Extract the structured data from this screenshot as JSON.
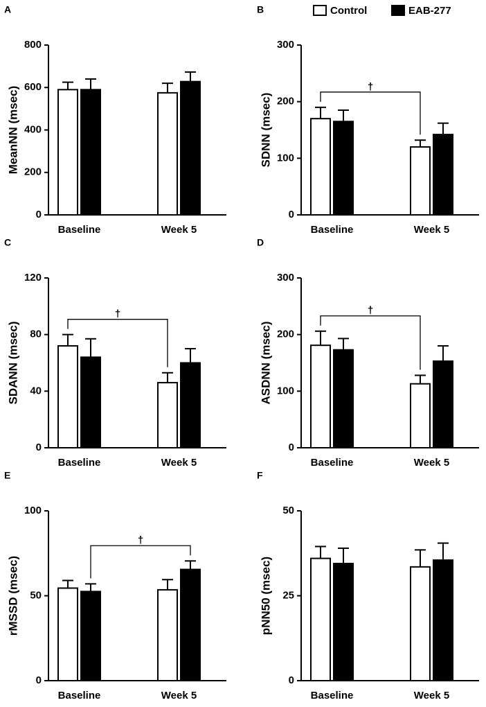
{
  "chart_data": [
    {
      "type": "bar",
      "panel": "A",
      "ylabel": "MeanNN (msec)",
      "categories": [
        "Baseline",
        "Week 5"
      ],
      "ylim": [
        0,
        800
      ],
      "yticks": [
        0,
        200,
        400,
        600,
        800
      ],
      "series": [
        {
          "color": "#ffffff",
          "values": [
            590,
            575
          ],
          "errors": [
            35,
            45
          ]
        },
        {
          "color": "#000000",
          "values": [
            590,
            628
          ],
          "errors": [
            50,
            45
          ]
        }
      ]
    },
    {
      "type": "bar",
      "panel": "B",
      "ylabel": "SDNN (msec)",
      "categories": [
        "Baseline",
        "Week 5"
      ],
      "ylim": [
        0,
        300
      ],
      "yticks": [
        0,
        100,
        200,
        300
      ],
      "legend": "top",
      "series": [
        {
          "name": "Control",
          "color": "#ffffff",
          "values": [
            170,
            120
          ],
          "errors": [
            20,
            12
          ]
        },
        {
          "name": "EAB-277",
          "color": "#000000",
          "values": [
            165,
            142
          ],
          "errors": [
            20,
            20
          ]
        }
      ],
      "annotations": [
        {
          "text": "†",
          "between": [
            [
              0,
              0
            ],
            [
              1,
              0
            ]
          ]
        }
      ]
    },
    {
      "type": "bar",
      "panel": "C",
      "ylabel": "SDANN (msec)",
      "categories": [
        "Baseline",
        "Week 5"
      ],
      "ylim": [
        0,
        120
      ],
      "yticks": [
        0,
        40,
        80,
        120
      ],
      "series": [
        {
          "color": "#ffffff",
          "values": [
            72,
            46
          ],
          "errors": [
            8,
            7
          ]
        },
        {
          "color": "#000000",
          "values": [
            64,
            60
          ],
          "errors": [
            13,
            10
          ]
        }
      ],
      "annotations": [
        {
          "text": "†",
          "between": [
            [
              0,
              0
            ],
            [
              1,
              0
            ]
          ]
        }
      ]
    },
    {
      "type": "bar",
      "panel": "D",
      "ylabel": "ASDNN (msec)",
      "categories": [
        "Baseline",
        "Week 5"
      ],
      "ylim": [
        0,
        300
      ],
      "yticks": [
        0,
        100,
        200,
        300
      ],
      "series": [
        {
          "color": "#ffffff",
          "values": [
            181,
            113
          ],
          "errors": [
            25,
            15
          ]
        },
        {
          "color": "#000000",
          "values": [
            173,
            153
          ],
          "errors": [
            20,
            27
          ]
        }
      ],
      "annotations": [
        {
          "text": "†",
          "between": [
            [
              0,
              0
            ],
            [
              1,
              0
            ]
          ]
        }
      ]
    },
    {
      "type": "bar",
      "panel": "E",
      "ylabel": "rMSSD (msec)",
      "categories": [
        "Baseline",
        "Week 5"
      ],
      "ylim": [
        0,
        100
      ],
      "yticks": [
        0,
        50,
        100
      ],
      "series": [
        {
          "color": "#ffffff",
          "values": [
            54.5,
            53.5
          ],
          "errors": [
            4.5,
            6
          ]
        },
        {
          "color": "#000000",
          "values": [
            52.5,
            65.5
          ],
          "errors": [
            4.5,
            5
          ]
        }
      ],
      "annotations": [
        {
          "text": "†",
          "between": [
            [
              0,
              1
            ],
            [
              1,
              1
            ]
          ]
        }
      ]
    },
    {
      "type": "bar",
      "panel": "F",
      "ylabel": "pNN50 (msec)",
      "categories": [
        "Baseline",
        "Week 5"
      ],
      "ylim": [
        0,
        50
      ],
      "yticks": [
        0,
        25,
        50
      ],
      "series": [
        {
          "color": "#ffffff",
          "values": [
            36,
            33.5
          ],
          "errors": [
            3.5,
            5
          ]
        },
        {
          "color": "#000000",
          "values": [
            34.5,
            35.5
          ],
          "errors": [
            4.5,
            5
          ]
        }
      ]
    }
  ]
}
